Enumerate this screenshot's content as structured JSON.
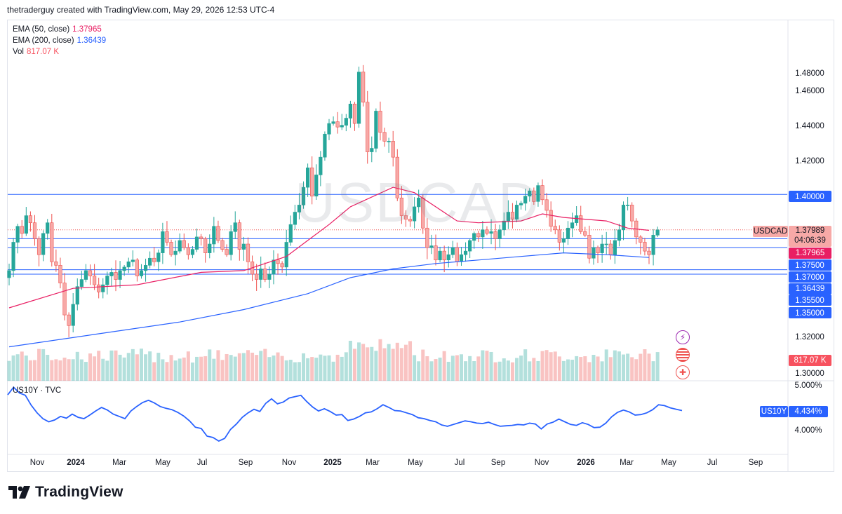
{
  "header": {
    "credit": "thetraderguy created with TradingView.com, May 29, 2026 12:53 UTC-4"
  },
  "symbol": "USDCAD",
  "legend": [
    {
      "label": "EMA (50, close)",
      "value": "1.37965",
      "color": "#e91e63"
    },
    {
      "label": "EMA (200, close)",
      "value": "1.36439",
      "color": "#2962ff"
    },
    {
      "label": "Vol",
      "value": "817.07 K",
      "color": "#f7525f"
    }
  ],
  "price_axis": {
    "ticks": [
      "1.48000",
      "1.46000",
      "1.44000",
      "1.42000",
      "1.40000",
      "1.37500",
      "1.37000",
      "1.35500",
      "1.35000",
      "1.32000",
      "1.30000"
    ]
  },
  "tags": {
    "last_price": "1.37989",
    "countdown": "04:06:39",
    "ema50": "1.37965",
    "ema200": "1.36439",
    "volume": "817.07 K"
  },
  "x_axis": {
    "labels": [
      "Nov",
      "2024",
      "Mar",
      "May",
      "Jul",
      "Sep",
      "Nov",
      "2025",
      "Mar",
      "May",
      "Jul",
      "Sep",
      "Nov",
      "2026",
      "Mar",
      "May",
      "Jul",
      "Sep"
    ]
  },
  "indicator": {
    "title": "US10Y · TVC",
    "tag": "US10Y",
    "value": "4.434%",
    "axis_ticks": [
      "5.000%",
      "4.000%"
    ]
  },
  "colors": {
    "up": "#26a69a",
    "down": "#ef5350",
    "ema50": "#e91e63",
    "ema200": "#2962ff",
    "hline": "#2962ff",
    "us10y": "#2962ff"
  },
  "brand": {
    "name": "TradingView"
  },
  "chart_data": {
    "type": "candlestick",
    "timeframe": "weekly",
    "title": "USDCAD",
    "ylim": [
      1.29,
      1.485
    ],
    "horizontal_lines": [
      1.4,
      1.375,
      1.37,
      1.3575,
      1.355
    ],
    "ohlc_closes": [
      1.357,
      1.373,
      1.382,
      1.378,
      1.388,
      1.384,
      1.375,
      1.366,
      1.378,
      1.384,
      1.362,
      1.36,
      1.35,
      1.332,
      1.326,
      1.338,
      1.348,
      1.352,
      1.357,
      1.354,
      1.349,
      1.345,
      1.349,
      1.354,
      1.356,
      1.352,
      1.357,
      1.359,
      1.362,
      1.363,
      1.354,
      1.357,
      1.36,
      1.364,
      1.362,
      1.367,
      1.379,
      1.373,
      1.366,
      1.368,
      1.374,
      1.37,
      1.366,
      1.369,
      1.376,
      1.375,
      1.367,
      1.372,
      1.382,
      1.374,
      1.369,
      1.366,
      1.379,
      1.384,
      1.369,
      1.372,
      1.362,
      1.355,
      1.352,
      1.358,
      1.352,
      1.355,
      1.363,
      1.361,
      1.359,
      1.373,
      1.383,
      1.39,
      1.394,
      1.404,
      1.415,
      1.399,
      1.411,
      1.421,
      1.434,
      1.44,
      1.441,
      1.438,
      1.439,
      1.443,
      1.451,
      1.44,
      1.469,
      1.452,
      1.424,
      1.426,
      1.447,
      1.435,
      1.43,
      1.43,
      1.421,
      1.398,
      1.388,
      1.386,
      1.385,
      1.393,
      1.398,
      1.381,
      1.37,
      1.371,
      1.363,
      1.368,
      1.363,
      1.366,
      1.37,
      1.362,
      1.366,
      1.368,
      1.374,
      1.378,
      1.376,
      1.38,
      1.378,
      1.379,
      1.375,
      1.38,
      1.385,
      1.39,
      1.386,
      1.394,
      1.395,
      1.399,
      1.402,
      1.396,
      1.405,
      1.397,
      1.391,
      1.382,
      1.38,
      1.373,
      1.375,
      1.381,
      1.384,
      1.388,
      1.379,
      1.377,
      1.364,
      1.37,
      1.367,
      1.372,
      1.372,
      1.366,
      1.374,
      1.38,
      1.394,
      1.394,
      1.385,
      1.376,
      1.373,
      1.368,
      1.366,
      1.377,
      1.38
    ],
    "ema50_points": [
      [
        0,
        1.336
      ],
      [
        15,
        1.347
      ],
      [
        30,
        1.349
      ],
      [
        45,
        1.356
      ],
      [
        55,
        1.357
      ],
      [
        65,
        1.365
      ],
      [
        70,
        1.374
      ],
      [
        75,
        1.383
      ],
      [
        80,
        1.393
      ],
      [
        90,
        1.404
      ],
      [
        95,
        1.401
      ],
      [
        100,
        1.393
      ],
      [
        105,
        1.385
      ],
      [
        110,
        1.384
      ],
      [
        120,
        1.385
      ],
      [
        125,
        1.389
      ],
      [
        130,
        1.387
      ],
      [
        140,
        1.385
      ],
      [
        145,
        1.381
      ],
      [
        150,
        1.3797
      ]
    ],
    "ema200_points": [
      [
        0,
        1.314
      ],
      [
        20,
        1.321
      ],
      [
        40,
        1.328
      ],
      [
        55,
        1.335
      ],
      [
        70,
        1.344
      ],
      [
        80,
        1.353
      ],
      [
        90,
        1.358
      ],
      [
        100,
        1.361
      ],
      [
        110,
        1.363
      ],
      [
        120,
        1.365
      ],
      [
        130,
        1.367
      ],
      [
        140,
        1.366
      ],
      [
        150,
        1.3644
      ]
    ],
    "us10y_series": [
      4.78,
      4.95,
      4.82,
      4.77,
      4.55,
      4.38,
      4.25,
      4.18,
      4.22,
      4.3,
      4.26,
      4.35,
      4.28,
      4.25,
      4.33,
      4.42,
      4.5,
      4.44,
      4.35,
      4.3,
      4.25,
      4.42,
      4.52,
      4.61,
      4.66,
      4.6,
      4.52,
      4.48,
      4.45,
      4.39,
      4.31,
      4.2,
      4.06,
      4.03,
      3.86,
      3.83,
      3.75,
      3.81,
      4.01,
      4.13,
      4.28,
      4.38,
      4.46,
      4.41,
      4.59,
      4.69,
      4.58,
      4.62,
      4.71,
      4.74,
      4.77,
      4.63,
      4.51,
      4.42,
      4.47,
      4.41,
      4.33,
      4.34,
      4.21,
      4.24,
      4.3,
      4.38,
      4.4,
      4.47,
      4.56,
      4.5,
      4.43,
      4.42,
      4.38,
      4.34,
      4.27,
      4.25,
      4.21,
      4.18,
      4.11,
      4.08,
      4.12,
      4.16,
      4.2,
      4.18,
      4.15,
      4.14,
      4.17,
      4.12,
      4.08,
      4.09,
      4.1,
      4.12,
      4.11,
      4.15,
      4.13,
      4.02,
      4.13,
      4.17,
      4.24,
      4.18,
      4.12,
      4.1,
      4.16,
      4.12,
      4.05,
      4.06,
      4.15,
      4.29,
      4.39,
      4.44,
      4.4,
      4.33,
      4.34,
      4.38,
      4.45,
      4.56,
      4.54,
      4.49,
      4.46,
      4.43
    ]
  }
}
